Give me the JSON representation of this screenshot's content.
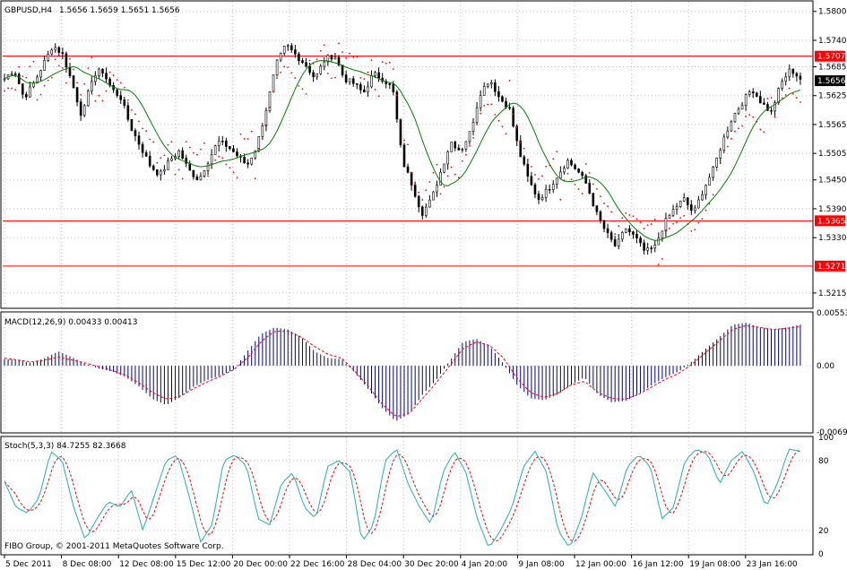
{
  "header": {
    "symbol": "GBPUSD,H4",
    "ohlc": "1.5656 1.5659 1.5651 1.5656"
  },
  "macd_header": "MACD(12,26,9) 0.00433 0.00413",
  "stoch_header": "Stoch(5,3,3) 84.7255 82.3668",
  "copyright": "FIBO Group, © 2001-2011 MetaQuotes Software Corp.",
  "colors": {
    "bull": "#000000",
    "bear": "#000000",
    "ma": "#008000",
    "sar": "#ff0000",
    "hline": "#ff0000",
    "macd_hist": "#000080",
    "macd_signal": "#ff0000",
    "stoch_main": "#20b2aa",
    "stoch_signal": "#ff0000",
    "current_price_bg": "#000000",
    "grid": "#c0c0c0"
  },
  "chart_data": [
    {
      "type": "candlestick",
      "name": "price",
      "ylim": [
        1.5185,
        1.582
      ],
      "y_ticks": [
        "1.5800",
        "1.5740",
        "1.5685",
        "1.5625",
        "1.5565",
        "1.5505",
        "1.5450",
        "1.5390",
        "1.5330",
        "1.5215"
      ],
      "y_tick_values": [
        1.58,
        1.574,
        1.5685,
        1.5625,
        1.5565,
        1.5505,
        1.545,
        1.539,
        1.533,
        1.5215
      ],
      "current_price": 1.5656,
      "current_price_label": "1.5656",
      "horizontal_lines": [
        {
          "value": 1.5707,
          "label": "1.5707"
        },
        {
          "value": 1.5365,
          "label": "1.5365"
        },
        {
          "value": 1.5271,
          "label": "1.5271"
        }
      ],
      "close_path": [
        1.566,
        1.568,
        1.562,
        1.565,
        1.569,
        1.573,
        1.571,
        1.565,
        1.558,
        1.566,
        1.568,
        1.564,
        1.562,
        1.556,
        1.552,
        1.548,
        1.546,
        1.549,
        1.551,
        1.547,
        1.545,
        1.549,
        1.553,
        1.552,
        1.55,
        1.548,
        1.552,
        1.56,
        1.569,
        1.573,
        1.571,
        1.569,
        1.566,
        1.57,
        1.571,
        1.566,
        1.565,
        1.563,
        1.567,
        1.566,
        1.564,
        1.549,
        1.544,
        1.538,
        1.541,
        1.547,
        1.553,
        1.551,
        1.555,
        1.563,
        1.566,
        1.562,
        1.56,
        1.551,
        1.545,
        1.541,
        1.543,
        1.546,
        1.549,
        1.547,
        1.544,
        1.538,
        1.534,
        1.531,
        1.535,
        1.533,
        1.53,
        1.531,
        1.536,
        1.539,
        1.541,
        1.538,
        1.543,
        1.547,
        1.553,
        1.558,
        1.561,
        1.564,
        1.561,
        1.559,
        1.565,
        1.568,
        1.566
      ]
    },
    {
      "type": "bar",
      "name": "MACD",
      "ylim": [
        -0.00691,
        0.00553
      ],
      "y_ticks": [
        "0.00553",
        "0.00",
        "-0.00691"
      ],
      "y_tick_values": [
        0.00553,
        0.0,
        -0.00691
      ],
      "main_value": 0.00433,
      "signal_value": 0.00413,
      "hist_path": [
        0.0007,
        0.0006,
        0.0003,
        0.0008,
        0.0015,
        0.0009,
        0.0002,
        -0.0003,
        -0.0006,
        -0.0012,
        -0.0022,
        -0.0035,
        -0.0041,
        -0.0033,
        -0.0022,
        -0.0015,
        -0.001,
        -0.0004,
        0.0015,
        0.0033,
        0.004,
        0.0038,
        0.003,
        0.0015,
        0.0008,
        0.0007,
        -0.0008,
        -0.0025,
        -0.0044,
        -0.0058,
        -0.005,
        -0.003,
        -0.0015,
        0.0005,
        0.0025,
        0.0028,
        0.002,
        0.0002,
        -0.002,
        -0.0034,
        -0.0036,
        -0.003,
        -0.002,
        -0.0012,
        -0.003,
        -0.0038,
        -0.0037,
        -0.003,
        -0.002,
        -0.0012,
        -0.0006,
        0.0005,
        0.0018,
        0.003,
        0.0043,
        0.0045,
        0.004,
        0.0038,
        0.004,
        0.0043
      ],
      "signal_path": [
        0.0008,
        0.0006,
        0.0004,
        0.0006,
        0.0009,
        0.0006,
        0.0003,
        -0.0001,
        -0.0005,
        -0.001,
        -0.0018,
        -0.0028,
        -0.0035,
        -0.0032,
        -0.0024,
        -0.0017,
        -0.0011,
        -0.0004,
        0.0008,
        0.0025,
        0.0036,
        0.0036,
        0.003,
        0.002,
        0.0012,
        0.0008,
        -0.0006,
        -0.0022,
        -0.004,
        -0.0053,
        -0.005,
        -0.0034,
        -0.0018,
        0.0,
        0.0018,
        0.0025,
        0.0021,
        0.0008,
        -0.0013,
        -0.0028,
        -0.0033,
        -0.0029,
        -0.002,
        -0.0016,
        -0.0028,
        -0.0034,
        -0.0035,
        -0.003,
        -0.0022,
        -0.0014,
        -0.0008,
        0.0002,
        0.0014,
        0.0026,
        0.0038,
        0.0042,
        0.004,
        0.0038,
        0.0039,
        0.0041
      ]
    },
    {
      "type": "line",
      "name": "Stoch",
      "ylim": [
        0,
        100
      ],
      "y_ticks": [
        "100",
        "80",
        "20",
        "0"
      ],
      "y_tick_values": [
        100,
        80,
        20,
        0
      ],
      "main_value": 84.7255,
      "signal_value": 82.3668,
      "main_path": [
        62,
        40,
        35,
        48,
        88,
        80,
        40,
        12,
        30,
        45,
        40,
        55,
        20,
        50,
        80,
        85,
        50,
        10,
        25,
        80,
        85,
        75,
        30,
        25,
        60,
        70,
        40,
        30,
        75,
        80,
        70,
        10,
        25,
        80,
        90,
        60,
        40,
        25,
        70,
        88,
        70,
        30,
        5,
        20,
        40,
        75,
        88,
        70,
        20,
        5,
        30,
        70,
        55,
        40,
        75,
        85,
        75,
        30,
        40,
        80,
        90,
        85,
        60,
        80,
        88,
        70,
        40,
        60,
        90,
        88
      ]
    }
  ],
  "x_axis": {
    "labels": [
      "5 Dec 2011",
      "8 Dec 08:00",
      "12 Dec 08:00",
      "15 Dec 12:00",
      "20 Dec 00:00",
      "22 Dec 16:00",
      "28 Dec 04:00",
      "30 Dec 20:00",
      "4 Jan 20:00",
      "9 Jan 08:00",
      "12 Jan 00:00",
      "16 Jan 12:00",
      "19 Jan 08:00",
      "23 Jan 16:00"
    ]
  }
}
